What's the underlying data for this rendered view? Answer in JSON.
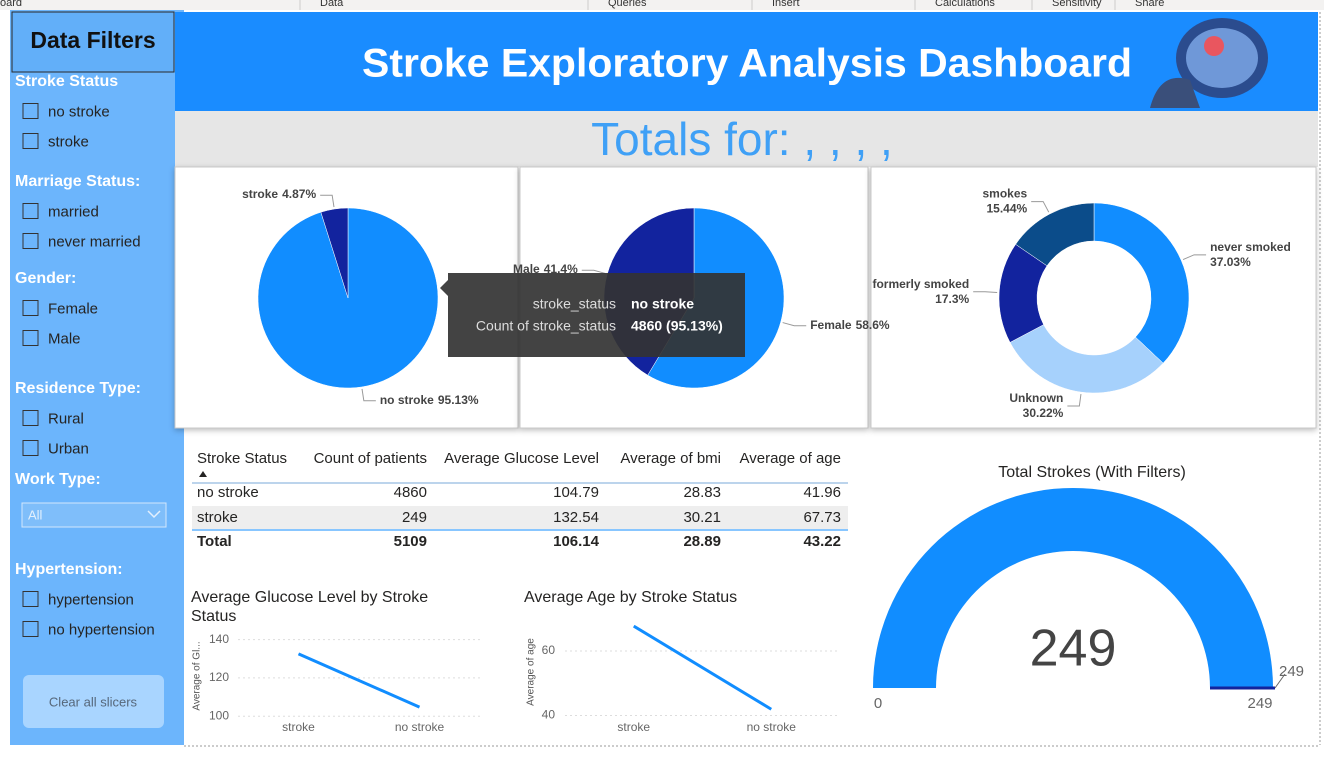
{
  "ribbon": [
    "oard",
    "Data",
    "Queries",
    "Insert",
    "Calculations",
    "Sensitivity",
    "Share"
  ],
  "filters": {
    "title": "Data Filters",
    "groups": [
      {
        "title": "Stroke Status",
        "options": [
          "no stroke",
          "stroke"
        ]
      },
      {
        "title": "Marriage Status:",
        "options": [
          "married",
          "never married"
        ]
      },
      {
        "title": "Gender:",
        "options": [
          "Female",
          "Male"
        ]
      },
      {
        "title": "Residence Type:",
        "options": [
          "Rural",
          "Urban"
        ]
      },
      {
        "title": "Work Type:",
        "dropdown": "All"
      },
      {
        "title": "Hypertension:",
        "options": [
          "hypertension",
          "no hypertension"
        ]
      }
    ],
    "button": "Clear all slicers"
  },
  "header": {
    "title": "Stroke Exploratory Analysis Dashboard",
    "subtitle": "Totals for: , , , ,"
  },
  "chart_data": [
    {
      "type": "pie",
      "categories": [
        "no stroke",
        "stroke"
      ],
      "values": [
        95.13,
        4.87
      ],
      "value_labels": [
        "95.13%",
        "4.87%"
      ],
      "colors": [
        "#118dff",
        "#12239e"
      ]
    },
    {
      "type": "pie",
      "categories": [
        "Female",
        "Male"
      ],
      "values": [
        58.6,
        41.4
      ],
      "value_labels": [
        "58.6%",
        "41.4%"
      ],
      "colors": [
        "#118dff",
        "#12239e"
      ]
    },
    {
      "type": "donut",
      "categories": [
        "never smoked",
        "Unknown",
        "formerly smoked",
        "smokes"
      ],
      "values": [
        37.03,
        30.22,
        17.3,
        15.44
      ],
      "value_labels": [
        "37.03%",
        "30.22%",
        "17.3%",
        "15.44%"
      ],
      "colors": [
        "#118dff",
        "#a6d1fc",
        "#12239e",
        "#0b4c8a"
      ]
    },
    {
      "type": "line",
      "title": "Average Glucose Level by Stroke Status",
      "y_label": "Average of Gl...",
      "categories": [
        "stroke",
        "no stroke"
      ],
      "values": [
        132.54,
        104.79
      ],
      "ylim": [
        97,
        145
      ],
      "yticks": [
        100,
        120,
        140
      ],
      "color": "#118dff",
      "grid": true
    },
    {
      "type": "line",
      "title": "Average Age by Stroke Status",
      "y_label": "Average of age",
      "categories": [
        "stroke",
        "no stroke"
      ],
      "values": [
        67.73,
        41.96
      ],
      "ylim": [
        38,
        69
      ],
      "yticks": [
        40,
        60
      ],
      "color": "#118dff",
      "grid": true
    },
    {
      "type": "gauge",
      "title": "Total Strokes (With Filters)",
      "value": 249,
      "min": 0,
      "max": 249,
      "target": 249,
      "color": "#118dff",
      "target_color": "#12239e"
    }
  ],
  "tooltip": {
    "rows": [
      [
        "stroke_status",
        "no stroke"
      ],
      [
        "Count of stroke_status",
        "4860 (95.13%)"
      ]
    ]
  },
  "table": {
    "columns": [
      "Stroke Status",
      "Count of patients",
      "Average Glucose Level",
      "Average of bmi",
      "Average of age"
    ],
    "rows": [
      [
        "no stroke",
        4860,
        104.79,
        28.83,
        41.96
      ],
      [
        "stroke",
        249,
        132.54,
        30.21,
        67.73
      ]
    ],
    "total": [
      "Total",
      5109,
      106.14,
      28.89,
      43.22
    ]
  }
}
